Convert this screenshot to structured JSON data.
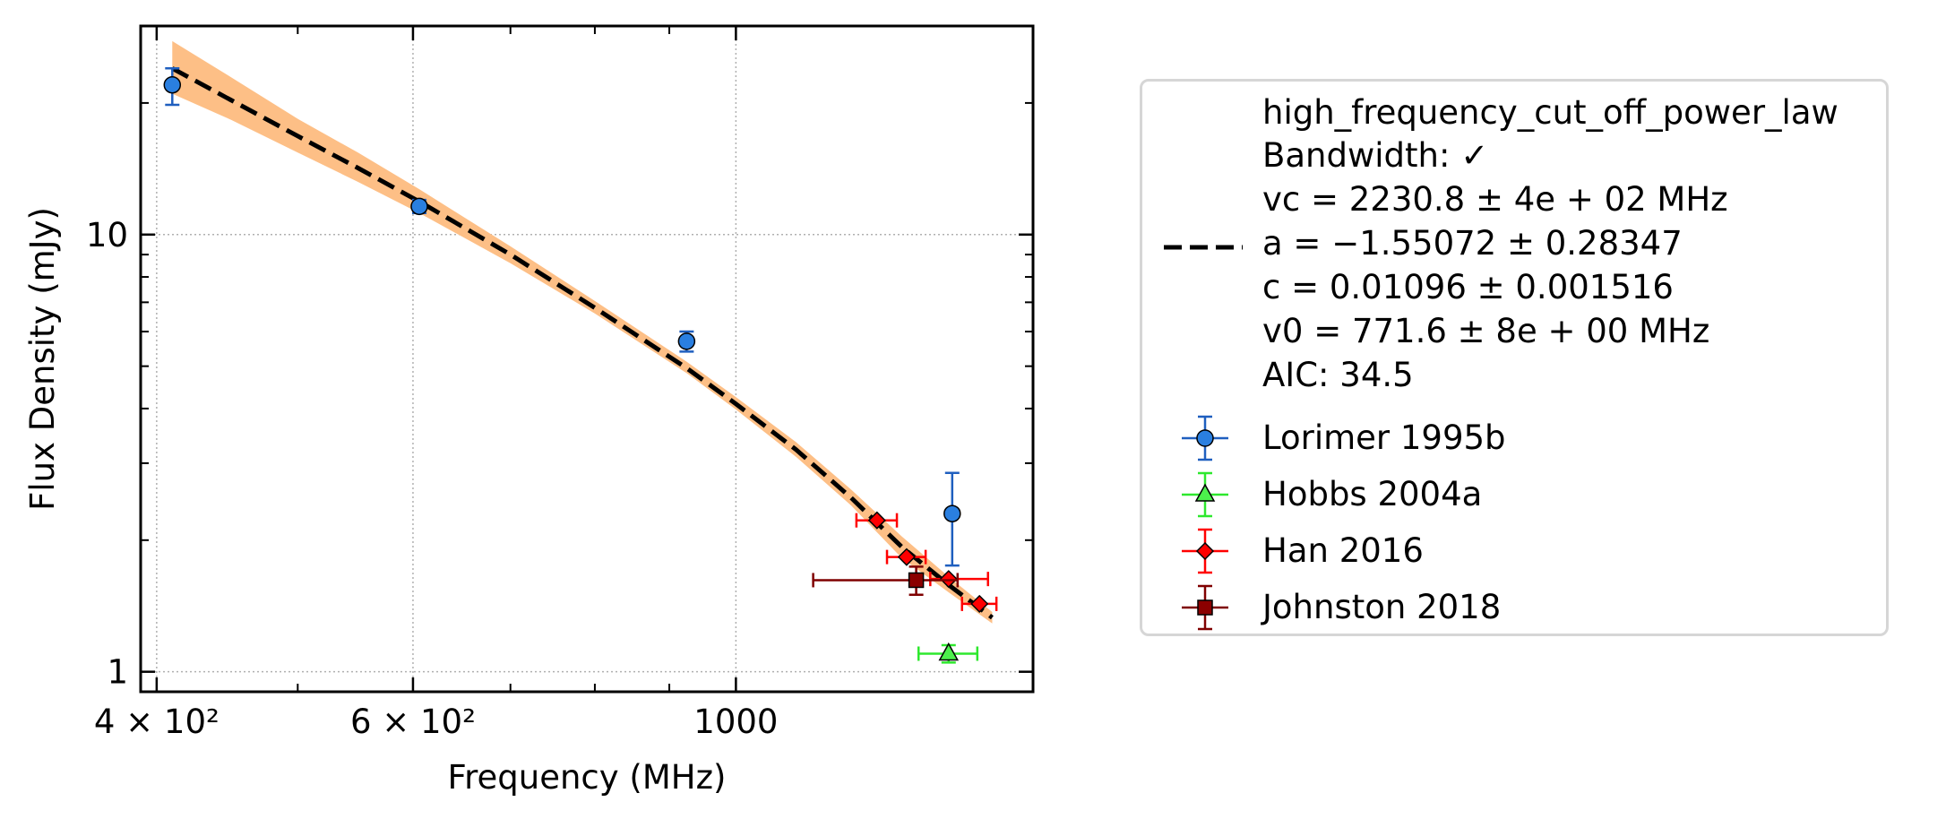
{
  "chart_data": {
    "type": "scatter",
    "xlabel": "Frequency (MHz)",
    "ylabel": "Flux Density (mJy)",
    "xscale": "log",
    "yscale": "log",
    "xlim": [
      390,
      1600
    ],
    "ylim": [
      0.9,
      30
    ],
    "x_ticks": [
      {
        "value": 400,
        "label": "4 × 10²"
      },
      {
        "value": 600,
        "label": "6 × 10²"
      },
      {
        "value": 1000,
        "label": "1000"
      }
    ],
    "y_ticks": [
      {
        "value": 1,
        "label": "1"
      },
      {
        "value": 10,
        "label": "10"
      }
    ],
    "grid": true,
    "legend_position": "outside-right",
    "fit": {
      "name": "high_frequency_cut_off_power_law",
      "info_lines": [
        "high_frequency_cut_off_power_law",
        "Bandwidth: ✓",
        "vc = 2230.8 ± 4e + 02 MHz",
        "a = −1.55072 ± 0.28347",
        "c = 0.01096 ± 0.001516",
        "v0 = 771.6 ± 8e + 00 MHz",
        "AIC: 34.5"
      ],
      "color": "#000000",
      "band_color": "#fdbf86",
      "x": [
        410,
        450,
        500,
        550,
        606,
        700,
        800,
        925,
        1000,
        1100,
        1200,
        1300,
        1400,
        1500
      ],
      "y": [
        24.0,
        20.3,
        16.8,
        14.2,
        11.9,
        9.0,
        6.8,
        4.95,
        4.1,
        3.22,
        2.5,
        1.93,
        1.58,
        1.33
      ],
      "band_lower": [
        21.0,
        18.3,
        15.4,
        13.2,
        11.2,
        8.6,
        6.6,
        4.82,
        3.98,
        3.1,
        2.4,
        1.82,
        1.52,
        1.29
      ],
      "band_upper": [
        27.7,
        22.9,
        18.4,
        15.4,
        12.7,
        9.4,
        7.05,
        5.12,
        4.25,
        3.35,
        2.61,
        2.04,
        1.65,
        1.37
      ]
    },
    "series": [
      {
        "name": "Lorimer 1995b",
        "marker": "circle",
        "color": "#2a7fe0",
        "ecolor": "#1f5fbf",
        "points": [
          {
            "x": 410,
            "y": 22.0,
            "yerr_low": 2.2,
            "yerr_high": 2.0
          },
          {
            "x": 606,
            "y": 11.6,
            "yerr_low": 0.4,
            "yerr_high": 0.4
          },
          {
            "x": 925,
            "y": 5.7,
            "yerr_low": 0.3,
            "yerr_high": 0.3
          },
          {
            "x": 1408,
            "y": 2.3,
            "yerr_low": 0.55,
            "yerr_high": 0.55
          }
        ]
      },
      {
        "name": "Hobbs 2004a",
        "marker": "triangle",
        "color": "#4cf04c",
        "ecolor": "#2ee82e",
        "points": [
          {
            "x": 1400,
            "y": 1.1,
            "yerr_low": 0.05,
            "yerr_high": 0.05,
            "xerr_low": 65,
            "xerr_high": 65
          }
        ]
      },
      {
        "name": "Han 2016",
        "marker": "diamond",
        "color": "#ff0000",
        "ecolor": "#ff0000",
        "points": [
          {
            "x": 1250,
            "y": 2.22,
            "xerr_low": 40,
            "xerr_high": 40
          },
          {
            "x": 1310,
            "y": 1.83,
            "xerr_low": 40,
            "xerr_high": 40
          },
          {
            "x": 1400,
            "y": 1.63,
            "xerr_low": 40,
            "xerr_high": 90
          },
          {
            "x": 1470,
            "y": 1.43,
            "xerr_low": 40,
            "xerr_high": 40
          }
        ]
      },
      {
        "name": "Johnston 2018",
        "marker": "square",
        "color": "#8b0000",
        "ecolor": "#7f0000",
        "points": [
          {
            "x": 1330,
            "y": 1.62,
            "yerr_low": 0.12,
            "yerr_high": 0.12,
            "xerr_low": 200,
            "xerr_high": 90
          }
        ]
      }
    ]
  }
}
